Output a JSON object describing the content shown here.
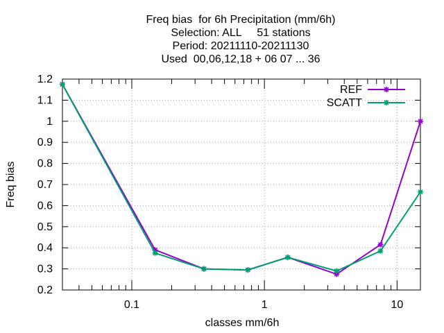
{
  "chart_data": {
    "type": "line",
    "title_lines": [
      "Freq bias  for 6h Precipitation (mm/6h)",
      "Selection: ALL     51 stations",
      "Period: 20211110-20211130",
      "Used  00,06,12,18 + 06 07 ... 36"
    ],
    "xlabel": "classes mm/6h",
    "ylabel": "Freq bias",
    "x_scale": "log",
    "xlim": [
      0.03,
      15
    ],
    "ylim": [
      0.2,
      1.2
    ],
    "x_ticks": [
      {
        "value": 0.1,
        "label": "0.1"
      },
      {
        "value": 1,
        "label": "1"
      },
      {
        "value": 10,
        "label": "10"
      }
    ],
    "y_ticks": [
      {
        "value": 0.2,
        "label": "0.2"
      },
      {
        "value": 0.3,
        "label": "0.3"
      },
      {
        "value": 0.4,
        "label": "0.4"
      },
      {
        "value": 0.5,
        "label": "0.5"
      },
      {
        "value": 0.6,
        "label": "0.6"
      },
      {
        "value": 0.7,
        "label": "0.7"
      },
      {
        "value": 0.8,
        "label": "0.8"
      },
      {
        "value": 0.9,
        "label": "0.9"
      },
      {
        "value": 1,
        "label": "1"
      },
      {
        "value": 1.1,
        "label": "1.1"
      },
      {
        "value": 1.2,
        "label": "1.2"
      }
    ],
    "grid": true,
    "legend_position": "top-right",
    "x": [
      0.03,
      0.15,
      0.35,
      0.75,
      1.5,
      3.5,
      7.5,
      15
    ],
    "series": [
      {
        "name": "REF",
        "color": "#9400d3",
        "values": [
          1.175,
          0.39,
          0.3,
          0.295,
          0.355,
          0.275,
          0.415,
          1.0
        ]
      },
      {
        "name": "SCATT",
        "color": "#009e73",
        "values": [
          1.175,
          0.375,
          0.3,
          0.295,
          0.355,
          0.29,
          0.385,
          0.665
        ]
      }
    ]
  }
}
